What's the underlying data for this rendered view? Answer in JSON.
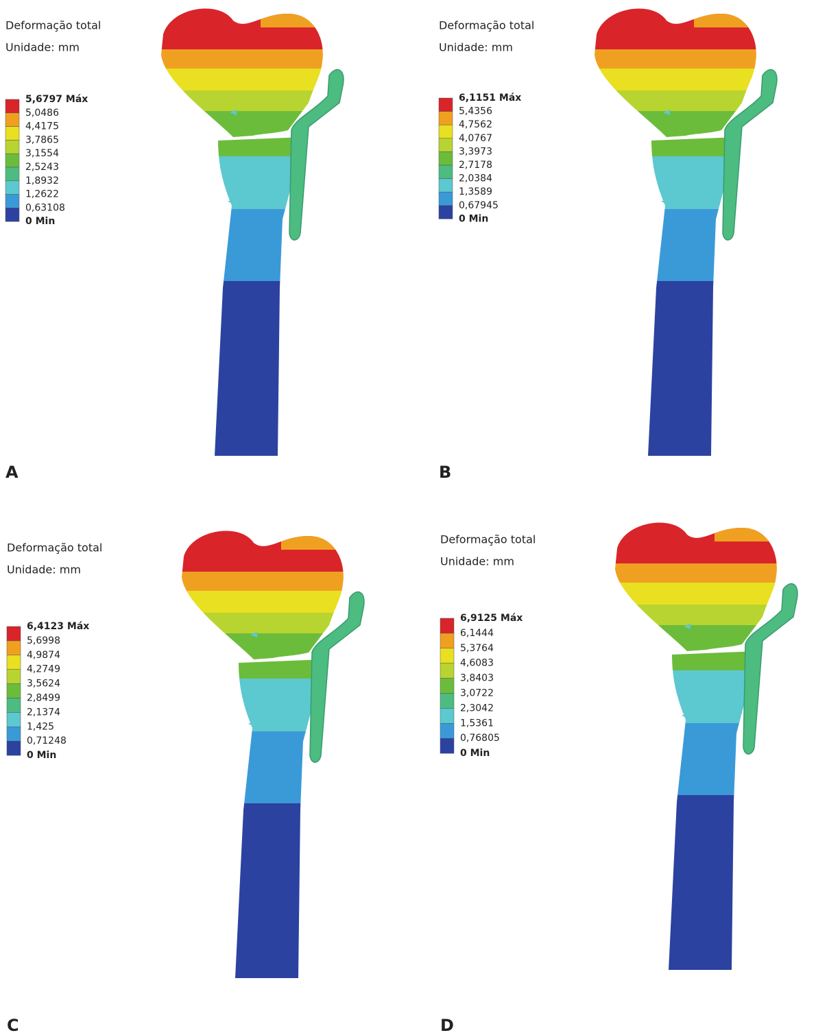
{
  "panels": [
    {
      "label": "A",
      "title": "Deformação total",
      "unit": "Unidade: mm",
      "legend": [
        "5,6797 Máx",
        "5,0486",
        "4,4175",
        "3,7865",
        "3,1554",
        "2,5243",
        "1,8932",
        "1,2622",
        "0,63108",
        "0 Min"
      ]
    },
    {
      "label": "B",
      "title": "Deformação total",
      "unit": "Unidade: mm",
      "legend": [
        "6,1151 Máx",
        "5,4356",
        "4,7562",
        "4,0767",
        "3,3973",
        "2,7178",
        "2,0384",
        "1,3589",
        "0,67945",
        "0 Min"
      ]
    },
    {
      "label": "C",
      "title": "Deformação total",
      "unit": "Unidade: mm",
      "legend": [
        "6,4123 Máx",
        "5,6998",
        "4,9874",
        "4,2749",
        "3,5624",
        "2,8499",
        "2,1374",
        "1,425",
        "0,71248",
        "0 Min"
      ]
    },
    {
      "label": "D",
      "title": "Deformação total",
      "unit": "Unidade: mm",
      "legend": [
        "6,9125 Máx",
        "6,1444",
        "5,3764",
        "4,6083",
        "3,8403",
        "3,0722",
        "2,3042",
        "1,5361",
        "0,76805",
        "0 Min"
      ]
    }
  ],
  "legend_colors": [
    "#d9242a",
    "#f0a020",
    "#e8e020",
    "#b8d430",
    "#6cbc3c",
    "#4cbc80",
    "#5cc8d0",
    "#3a9ad8",
    "#2c42a0"
  ]
}
